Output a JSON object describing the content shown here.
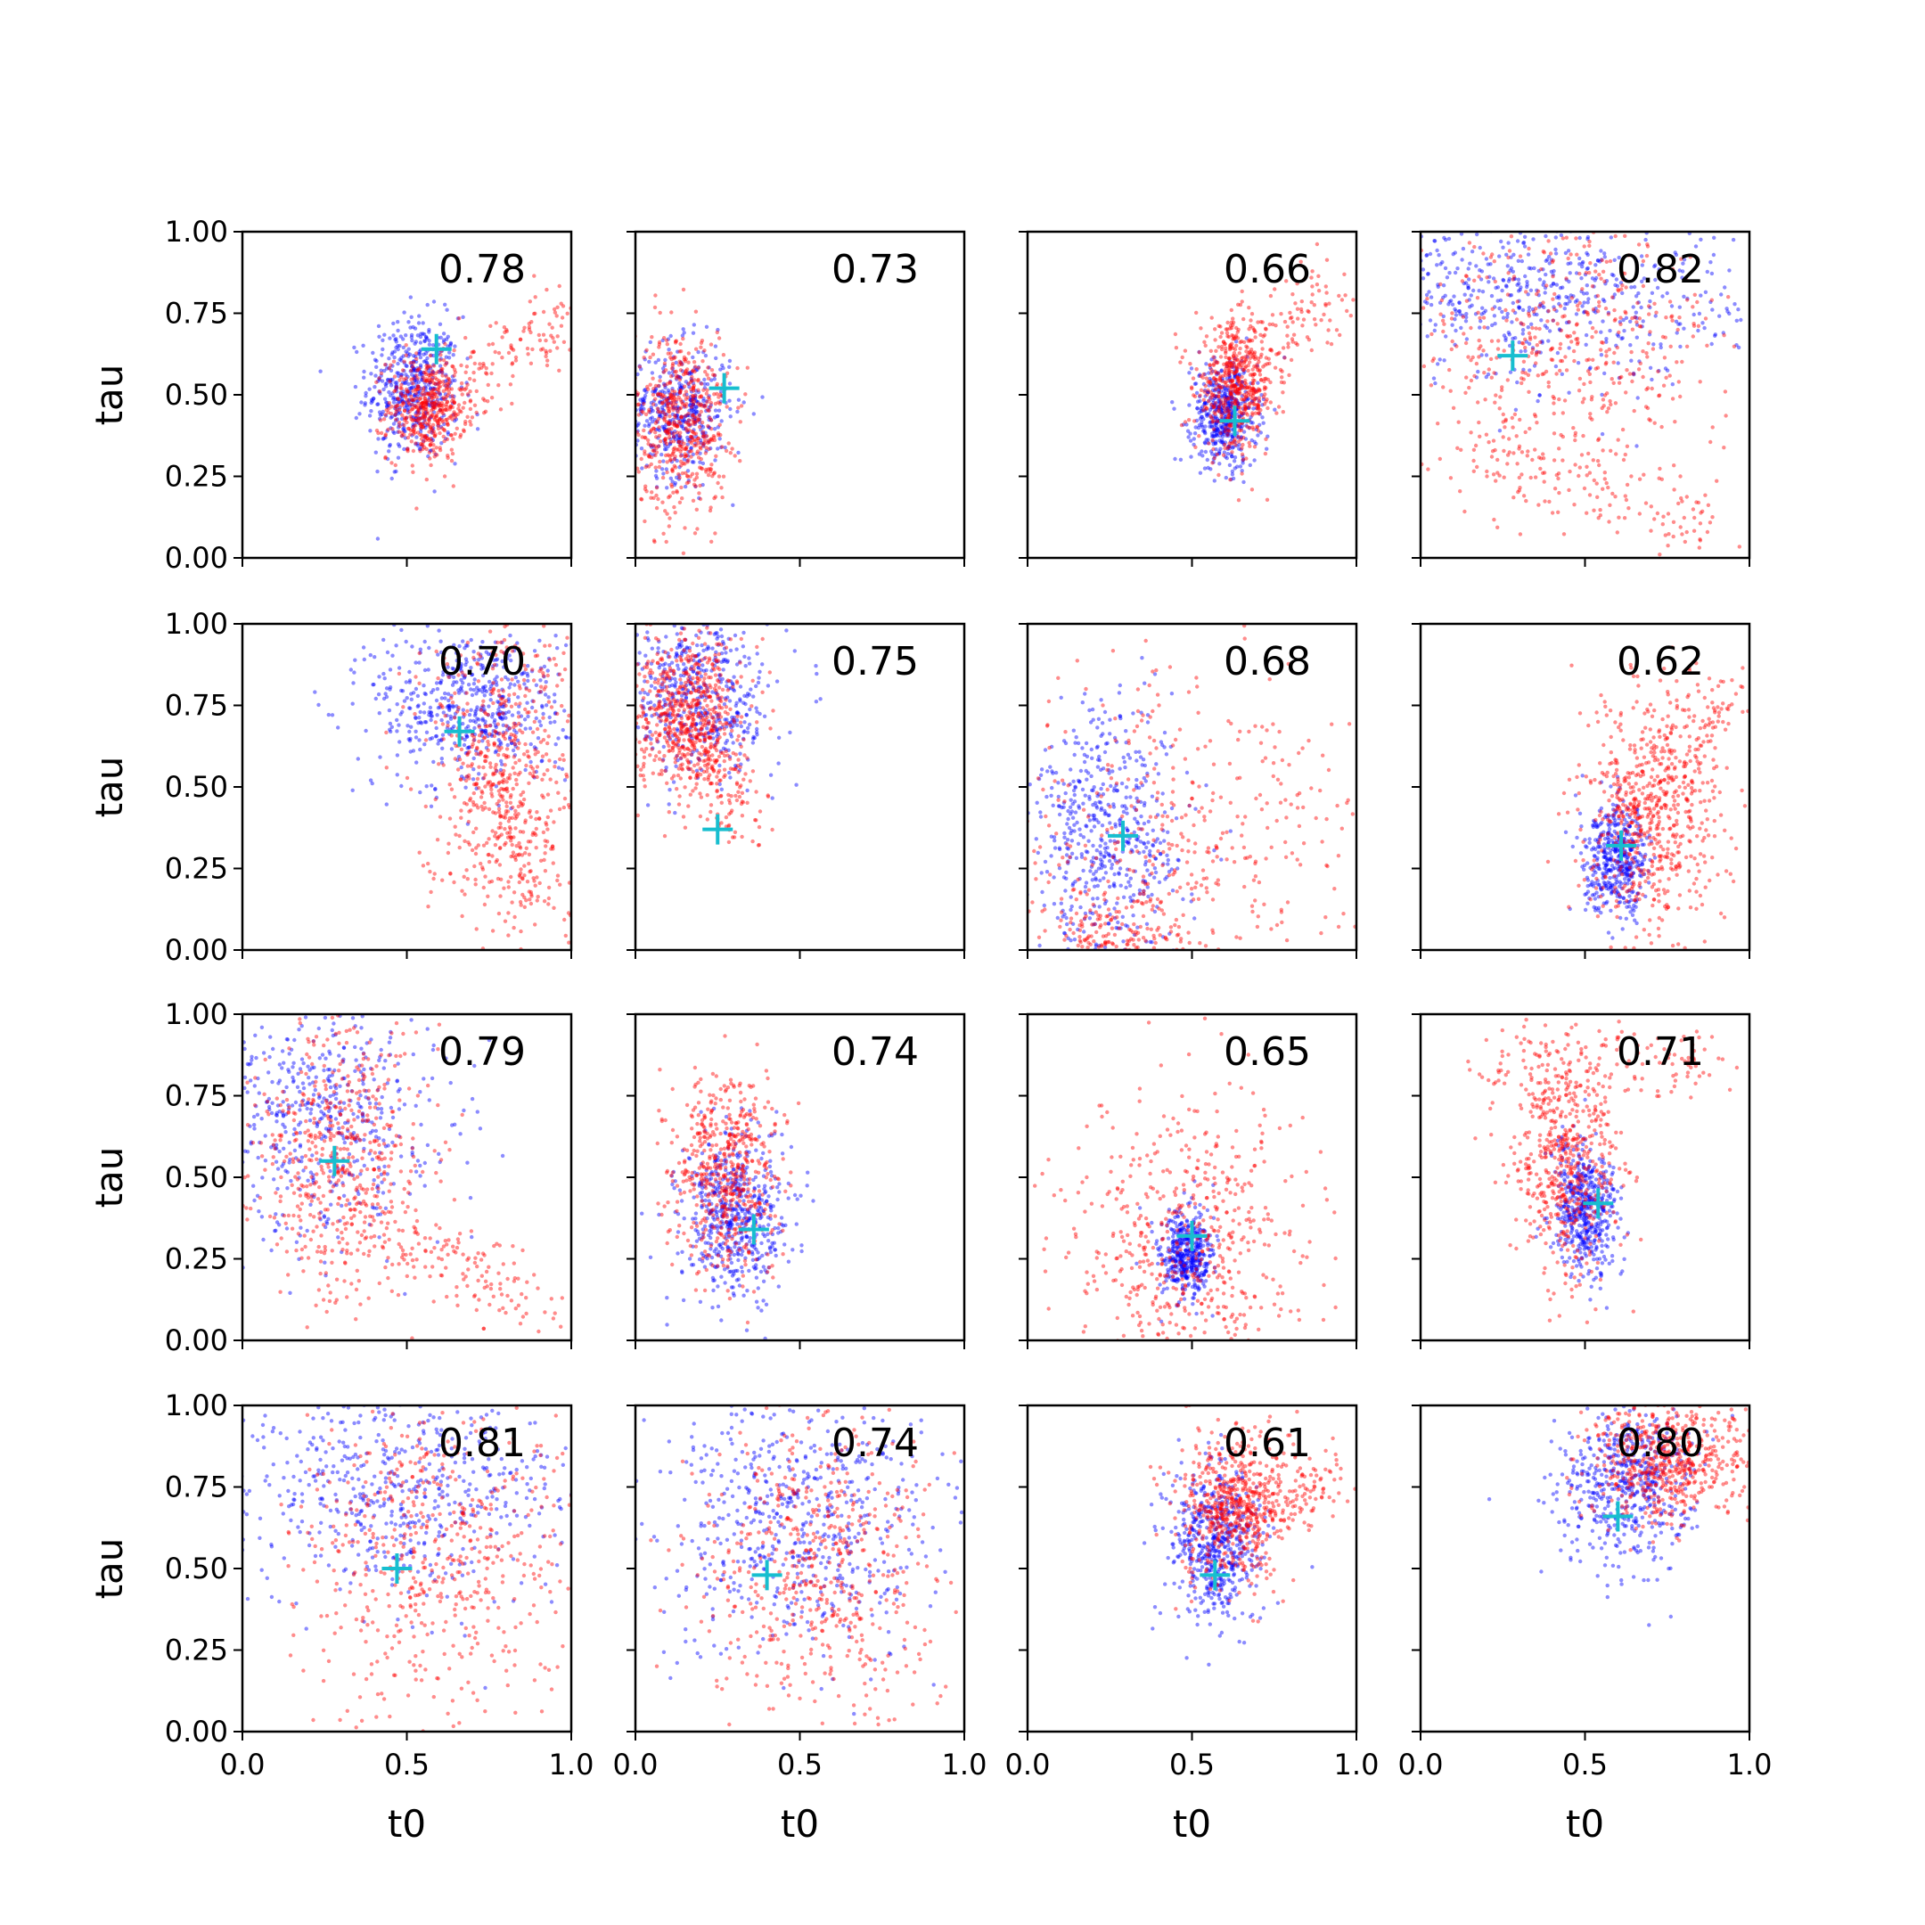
{
  "figure": {
    "xlabel": "t0",
    "ylabel": "tau",
    "xticks": [
      "0.0",
      "0.5",
      "1.0"
    ],
    "yticks": [
      "0.00",
      "0.25",
      "0.50",
      "0.75",
      "1.00"
    ]
  },
  "colors": {
    "blue": "#0000ff",
    "red": "#ff0000",
    "marker": "#17becf",
    "axis": "#000000"
  },
  "chart_data": [
    {
      "type": "scatter",
      "annotation": "0.78",
      "marker": {
        "t0": 0.59,
        "tau": 0.64
      },
      "blue_cluster": {
        "t0": 0.52,
        "tau": 0.52,
        "sx": 0.07,
        "sy": 0.11,
        "n": 500
      },
      "red_cluster": {
        "t0": 0.56,
        "tau": 0.46,
        "sx": 0.06,
        "sy": 0.08,
        "n": 450
      },
      "red_tail": [
        0.6,
        0.48,
        0.98,
        0.75
      ],
      "xlim": [
        0,
        1
      ],
      "ylim": [
        0,
        1
      ]
    },
    {
      "type": "scatter",
      "annotation": "0.73",
      "marker": {
        "t0": 0.27,
        "tau": 0.52
      },
      "blue_cluster": {
        "t0": 0.13,
        "tau": 0.45,
        "sx": 0.08,
        "sy": 0.1,
        "n": 450
      },
      "red_cluster": {
        "t0": 0.14,
        "tau": 0.42,
        "sx": 0.07,
        "sy": 0.14,
        "n": 550
      },
      "xlim": [
        0,
        1
      ],
      "ylim": [
        0,
        1
      ]
    },
    {
      "type": "scatter",
      "annotation": "0.66",
      "marker": {
        "t0": 0.63,
        "tau": 0.42
      },
      "blue_cluster": {
        "t0": 0.6,
        "tau": 0.44,
        "sx": 0.05,
        "sy": 0.08,
        "n": 500
      },
      "red_cluster": {
        "t0": 0.63,
        "tau": 0.52,
        "sx": 0.06,
        "sy": 0.1,
        "n": 500
      },
      "red_tail": [
        0.62,
        0.55,
        0.98,
        0.85
      ],
      "xlim": [
        0,
        1
      ],
      "ylim": [
        0,
        1
      ]
    },
    {
      "type": "scatter",
      "annotation": "0.82",
      "marker": {
        "t0": 0.28,
        "tau": 0.62
      },
      "blue_cluster": {
        "t0": 0.35,
        "tau": 0.8,
        "sx": 0.3,
        "sy": 0.13,
        "n": 600
      },
      "red_cluster": {
        "t0": 0.45,
        "tau": 0.65,
        "sx": 0.25,
        "sy": 0.2,
        "n": 500
      },
      "red_tail": [
        0.2,
        0.3,
        0.9,
        0.08
      ],
      "xlim": [
        0,
        1
      ],
      "ylim": [
        0,
        1
      ]
    },
    {
      "type": "scatter",
      "annotation": "0.70",
      "marker": {
        "t0": 0.66,
        "tau": 0.67
      },
      "blue_cluster": {
        "t0": 0.7,
        "tau": 0.75,
        "sx": 0.15,
        "sy": 0.13,
        "n": 550
      },
      "red_cluster": {
        "t0": 0.8,
        "tau": 0.55,
        "sx": 0.13,
        "sy": 0.25,
        "n": 550
      },
      "red_tail": [
        0.7,
        0.7,
        0.9,
        0.15
      ],
      "xlim": [
        0,
        1
      ],
      "ylim": [
        0,
        1
      ]
    },
    {
      "type": "scatter",
      "annotation": "0.75",
      "marker": {
        "t0": 0.25,
        "tau": 0.37
      },
      "blue_cluster": {
        "t0": 0.2,
        "tau": 0.78,
        "sx": 0.11,
        "sy": 0.13,
        "n": 500
      },
      "red_cluster": {
        "t0": 0.16,
        "tau": 0.72,
        "sx": 0.08,
        "sy": 0.12,
        "n": 600
      },
      "red_tail": [
        0.15,
        0.7,
        0.34,
        0.38
      ],
      "xlim": [
        0,
        1
      ],
      "ylim": [
        0,
        1
      ]
    },
    {
      "type": "scatter",
      "annotation": "0.68",
      "marker": {
        "t0": 0.29,
        "tau": 0.35
      },
      "blue_cluster": {
        "t0": 0.25,
        "tau": 0.35,
        "sx": 0.12,
        "sy": 0.2,
        "n": 550
      },
      "red_cluster": {
        "t0": 0.45,
        "tau": 0.3,
        "sx": 0.28,
        "sy": 0.28,
        "n": 450
      },
      "red_tail": [
        0.1,
        0.05,
        0.4,
        0.05
      ],
      "xlim": [
        0,
        1
      ],
      "ylim": [
        0,
        1
      ]
    },
    {
      "type": "scatter",
      "annotation": "0.62",
      "marker": {
        "t0": 0.61,
        "tau": 0.32
      },
      "blue_cluster": {
        "t0": 0.6,
        "tau": 0.28,
        "sx": 0.05,
        "sy": 0.08,
        "n": 450
      },
      "red_cluster": {
        "t0": 0.7,
        "tau": 0.4,
        "sx": 0.1,
        "sy": 0.2,
        "n": 600
      },
      "red_tail": [
        0.65,
        0.4,
        0.95,
        0.8
      ],
      "xlim": [
        0,
        1
      ],
      "ylim": [
        0,
        1
      ]
    },
    {
      "type": "scatter",
      "annotation": "0.79",
      "marker": {
        "t0": 0.28,
        "tau": 0.55
      },
      "blue_cluster": {
        "t0": 0.25,
        "tau": 0.7,
        "sx": 0.18,
        "sy": 0.2,
        "n": 550
      },
      "red_cluster": {
        "t0": 0.3,
        "tau": 0.55,
        "sx": 0.13,
        "sy": 0.22,
        "n": 550
      },
      "red_tail": [
        0.35,
        0.35,
        0.9,
        0.12
      ],
      "xlim": [
        0,
        1
      ],
      "ylim": [
        0,
        1
      ]
    },
    {
      "type": "scatter",
      "annotation": "0.74",
      "marker": {
        "t0": 0.36,
        "tau": 0.34
      },
      "blue_cluster": {
        "t0": 0.3,
        "tau": 0.38,
        "sx": 0.08,
        "sy": 0.12,
        "n": 550
      },
      "red_cluster": {
        "t0": 0.28,
        "tau": 0.52,
        "sx": 0.08,
        "sy": 0.15,
        "n": 550
      },
      "xlim": [
        0,
        1
      ],
      "ylim": [
        0,
        1
      ]
    },
    {
      "type": "scatter",
      "annotation": "0.65",
      "marker": {
        "t0": 0.5,
        "tau": 0.32
      },
      "blue_cluster": {
        "t0": 0.48,
        "tau": 0.26,
        "sx": 0.04,
        "sy": 0.07,
        "n": 450
      },
      "red_cluster": {
        "t0": 0.5,
        "tau": 0.25,
        "sx": 0.18,
        "sy": 0.25,
        "n": 600
      },
      "xlim": [
        0,
        1
      ],
      "ylim": [
        0,
        1
      ]
    },
    {
      "type": "scatter",
      "annotation": "0.71",
      "marker": {
        "t0": 0.54,
        "tau": 0.42
      },
      "blue_cluster": {
        "t0": 0.5,
        "tau": 0.4,
        "sx": 0.05,
        "sy": 0.1,
        "n": 500
      },
      "red_cluster": {
        "t0": 0.45,
        "tau": 0.55,
        "sx": 0.08,
        "sy": 0.17,
        "n": 550
      },
      "red_tail": [
        0.2,
        0.85,
        0.9,
        0.85
      ],
      "xlim": [
        0,
        1
      ],
      "ylim": [
        0,
        1
      ]
    },
    {
      "type": "scatter",
      "annotation": "0.81",
      "marker": {
        "t0": 0.47,
        "tau": 0.5
      },
      "blue_cluster": {
        "t0": 0.45,
        "tau": 0.75,
        "sx": 0.28,
        "sy": 0.17,
        "n": 600
      },
      "red_cluster": {
        "t0": 0.6,
        "tau": 0.55,
        "sx": 0.22,
        "sy": 0.25,
        "n": 550
      },
      "xlim": [
        0,
        1
      ],
      "ylim": [
        0,
        1
      ]
    },
    {
      "type": "scatter",
      "annotation": "0.74",
      "marker": {
        "t0": 0.4,
        "tau": 0.48
      },
      "blue_cluster": {
        "t0": 0.5,
        "tau": 0.65,
        "sx": 0.22,
        "sy": 0.2,
        "n": 600
      },
      "red_cluster": {
        "t0": 0.55,
        "tau": 0.5,
        "sx": 0.18,
        "sy": 0.25,
        "n": 550
      },
      "xlim": [
        0,
        1
      ],
      "ylim": [
        0,
        1
      ]
    },
    {
      "type": "scatter",
      "annotation": "0.61",
      "marker": {
        "t0": 0.57,
        "tau": 0.48
      },
      "blue_cluster": {
        "t0": 0.57,
        "tau": 0.58,
        "sx": 0.07,
        "sy": 0.12,
        "n": 550
      },
      "red_cluster": {
        "t0": 0.62,
        "tau": 0.68,
        "sx": 0.08,
        "sy": 0.12,
        "n": 550
      },
      "red_tail": [
        0.65,
        0.7,
        0.95,
        0.78
      ],
      "xlim": [
        0,
        1
      ],
      "ylim": [
        0,
        1
      ]
    },
    {
      "type": "scatter",
      "annotation": "0.80",
      "marker": {
        "t0": 0.6,
        "tau": 0.66
      },
      "blue_cluster": {
        "t0": 0.62,
        "tau": 0.75,
        "sx": 0.1,
        "sy": 0.12,
        "n": 550
      },
      "red_cluster": {
        "t0": 0.75,
        "tau": 0.82,
        "sx": 0.12,
        "sy": 0.1,
        "n": 600
      },
      "xlim": [
        0,
        1
      ],
      "ylim": [
        0,
        1
      ]
    }
  ]
}
